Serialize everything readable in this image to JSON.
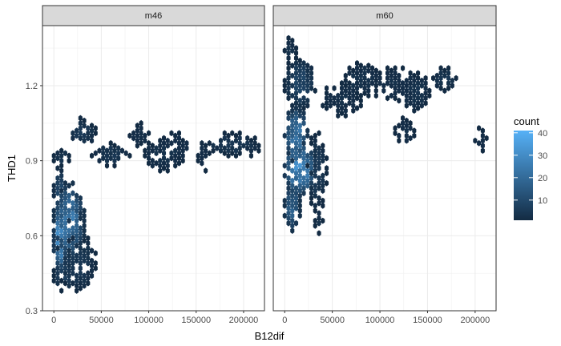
{
  "chart_data": {
    "type": "heatmap",
    "subtype": "hexbin",
    "xlabel": "B12dif",
    "ylabel": "THD1",
    "xlim": [
      -12000,
      222000
    ],
    "ylim": [
      0.3,
      1.44
    ],
    "x_ticks": [
      0,
      50000,
      100000,
      150000,
      200000
    ],
    "x_tick_labels": [
      "0",
      "50000",
      "100000",
      "150000",
      "200000"
    ],
    "y_ticks": [
      0.3,
      0.6,
      0.9,
      1.2
    ],
    "y_tick_labels": [
      "0.3",
      "0.6",
      "0.9",
      "1.2"
    ],
    "grid": true,
    "legend": {
      "title": "count",
      "position": "right",
      "range": [
        1,
        41
      ],
      "ticks": [
        10,
        20,
        30,
        40
      ],
      "tick_labels": [
        "10",
        "20",
        "30",
        "40"
      ],
      "low_color": "#132B43",
      "high_color": "#56B1F7"
    },
    "panels": [
      {
        "label": "m46",
        "clusters": [
          {
            "x": [
              0,
              20000
            ],
            "y": [
              0.38,
              0.5
            ],
            "count": [
              1,
              10
            ]
          },
          {
            "x": [
              0,
              10000
            ],
            "y": [
              0.45,
              0.7
            ],
            "count": [
              5,
              40
            ]
          },
          {
            "x": [
              0,
              30000
            ],
            "y": [
              0.5,
              0.8
            ],
            "count": [
              3,
              28
            ]
          },
          {
            "x": [
              5000,
              45000
            ],
            "y": [
              0.38,
              0.6
            ],
            "count": [
              1,
              6
            ]
          },
          {
            "x": [
              0,
              10000
            ],
            "y": [
              0.7,
              0.85
            ],
            "count": [
              2,
              12
            ]
          },
          {
            "x": [
              10000,
              30000
            ],
            "y": [
              0.64,
              0.72
            ],
            "count": [
              1,
              8
            ]
          },
          {
            "x": [
              0,
              15000
            ],
            "y": [
              0.88,
              0.94
            ],
            "count": [
              1,
              4
            ]
          },
          {
            "x": [
              15000,
              45000
            ],
            "y": [
              0.95,
              1.06
            ],
            "count": [
              1,
              6
            ]
          },
          {
            "x": [
              40000,
              80000
            ],
            "y": [
              0.88,
              0.95
            ],
            "count": [
              1,
              5
            ]
          },
          {
            "x": [
              80000,
              100000
            ],
            "y": [
              0.95,
              1.04
            ],
            "count": [
              1,
              3
            ]
          },
          {
            "x": [
              95000,
              135000
            ],
            "y": [
              0.86,
              0.97
            ],
            "count": [
              1,
              4
            ]
          },
          {
            "x": [
              110000,
              145000
            ],
            "y": [
              0.9,
              1.0
            ],
            "count": [
              1,
              3
            ]
          },
          {
            "x": [
              150000,
              165000
            ],
            "y": [
              0.86,
              0.96
            ],
            "count": [
              1,
              3
            ]
          },
          {
            "x": [
              165000,
              210000
            ],
            "y": [
              0.92,
              0.99
            ],
            "count": [
              1,
              6
            ]
          },
          {
            "x": [
              205000,
              215000
            ],
            "y": [
              0.92,
              0.97
            ],
            "count": [
              1,
              3
            ]
          }
        ]
      },
      {
        "label": "m60",
        "clusters": [
          {
            "x": [
              0,
              15000
            ],
            "y": [
              0.62,
              0.8
            ],
            "count": [
              3,
              20
            ]
          },
          {
            "x": [
              0,
              30000
            ],
            "y": [
              0.75,
              0.95
            ],
            "count": [
              5,
              35
            ]
          },
          {
            "x": [
              0,
              25000
            ],
            "y": [
              0.9,
              1.1
            ],
            "count": [
              4,
              28
            ]
          },
          {
            "x": [
              0,
              30000
            ],
            "y": [
              1.1,
              1.3
            ],
            "count": [
              1,
              10
            ]
          },
          {
            "x": [
              0,
              10000
            ],
            "y": [
              1.28,
              1.38
            ],
            "count": [
              1,
              4
            ]
          },
          {
            "x": [
              25000,
              45000
            ],
            "y": [
              0.7,
              1.0
            ],
            "count": [
              1,
              6
            ]
          },
          {
            "x": [
              30000,
              40000
            ],
            "y": [
              0.6,
              0.7
            ],
            "count": [
              1,
              3
            ]
          },
          {
            "x": [
              40000,
              80000
            ],
            "y": [
              1.08,
              1.2
            ],
            "count": [
              1,
              3
            ]
          },
          {
            "x": [
              65000,
              100000
            ],
            "y": [
              1.16,
              1.28
            ],
            "count": [
              1,
              4
            ]
          },
          {
            "x": [
              90000,
              140000
            ],
            "y": [
              1.14,
              1.26
            ],
            "count": [
              1,
              3
            ]
          },
          {
            "x": [
              115000,
              135000
            ],
            "y": [
              0.96,
              1.06
            ],
            "count": [
              1,
              3
            ]
          },
          {
            "x": [
              125000,
              150000
            ],
            "y": [
              1.1,
              1.24
            ],
            "count": [
              1,
              4
            ]
          },
          {
            "x": [
              155000,
              180000
            ],
            "y": [
              1.18,
              1.26
            ],
            "count": [
              1,
              5
            ]
          },
          {
            "x": [
              200000,
              210000
            ],
            "y": [
              0.94,
              1.02
            ],
            "count": [
              1,
              3
            ]
          }
        ]
      }
    ]
  }
}
